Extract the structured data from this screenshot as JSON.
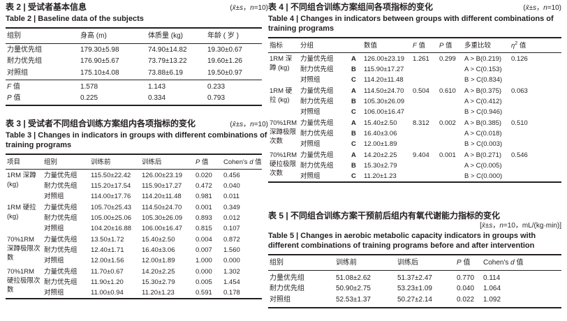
{
  "page": {
    "background": "#ffffff",
    "ink": "#231f20"
  },
  "table2": {
    "title_cn": "表 2 | 受试者基本信息",
    "notation_html": "(<i>x̄</i>±<i>s</i>，<i>n</i>=10)",
    "title_en": "Table 2 | Baseline data of the subjects",
    "headers": [
      "组别",
      "身高 (m)",
      "体质量 (kg)",
      "年龄 ( 岁 )"
    ],
    "rows": [
      [
        "力量优先组",
        "179.30±5.98",
        "74.90±14.82",
        "19.30±0.67"
      ],
      [
        "耐力优先组",
        "176.90±5.67",
        "73.79±13.22",
        "19.60±1.26"
      ],
      [
        "对照组",
        "175.10±4.08",
        "73.88±6.19",
        "19.50±0.97"
      ]
    ],
    "stats": [
      {
        "label_html": "<i>F</i> 值",
        "values": [
          "1.578",
          "1.143",
          "0.233"
        ]
      },
      {
        "label_html": "<i>P</i> 值",
        "values": [
          "0.225",
          "0.334",
          "0.793"
        ]
      }
    ]
  },
  "table3": {
    "title_cn": "表 3 | 受试者不同组合训练方案组内各项指标的变化",
    "notation_html": "(<i>x̄</i>±<i>s</i>，<i>n</i>=10)",
    "title_en": "Table 3 | Changes in indicators in groups with different combinations of training programs",
    "headers": [
      "项目",
      "组别",
      "训练前",
      "训练后"
    ],
    "header_p_html": "<i>P</i> 值",
    "header_d_html": "Cohen's <i>d</i> 值",
    "groups": [
      {
        "item": "1RM 深蹲 (kg)",
        "rows": [
          [
            "力量优先组",
            "115.50±22.42",
            "126.00±23.19",
            "0.020",
            "0.456"
          ],
          [
            "耐力优先组",
            "115.20±17.54",
            "115.90±17.27",
            "0.472",
            "0.040"
          ],
          [
            "对照组",
            "114.00±17.76",
            "114.20±11.48",
            "0.981",
            "0.011"
          ]
        ]
      },
      {
        "item": "1RM 硬拉 (kg)",
        "rows": [
          [
            "力量优先组",
            "105.70±25.43",
            "114.50±24.70",
            "0.001",
            "0.349"
          ],
          [
            "耐力优先组",
            "105.00±25.06",
            "105.30±26.09",
            "0.893",
            "0.012"
          ],
          [
            "对照组",
            "104.20±16.88",
            "106.00±16.47",
            "0.815",
            "0.107"
          ]
        ]
      },
      {
        "item": "70%1RM 深蹲极限次数",
        "rows": [
          [
            "力量优先组",
            "13.50±1.72",
            "15.40±2.50",
            "0.004",
            "0.872"
          ],
          [
            "耐力优先组",
            "12.40±1.71",
            "16.40±3.06",
            "0.007",
            "1.560"
          ],
          [
            "对照组",
            "12.00±1.56",
            "12.00±1.89",
            "1.000",
            "0.000"
          ]
        ]
      },
      {
        "item": "70%1RM 硬拉极限次数",
        "rows": [
          [
            "力量优先组",
            "11.70±0.67",
            "14.20±2.25",
            "0.000",
            "1.302"
          ],
          [
            "耐力优先组",
            "11.90±1.20",
            "15.30±2.79",
            "0.005",
            "1.454"
          ],
          [
            "对照组",
            "11.00±0.94",
            "11.20±1.23",
            "0.591",
            "0.178"
          ]
        ]
      }
    ]
  },
  "table4": {
    "title_cn": "表 4 | 不同组合训练方案组间各项指标的变化",
    "notation_html": "(<i>x̄</i>±<i>s</i>，<i>n</i>=10)",
    "title_en": "Table 4 | Changes in indicators between groups with different combinations of training programs",
    "headers": [
      "指标",
      "分组",
      "数值",
      "多重比较"
    ],
    "header_f_html": "<i>F</i> 值",
    "header_p_html": "<i>P</i> 值",
    "header_eta_html": "<i>η</i><sup>2</sup> 值",
    "groups": [
      {
        "item": "1RM 深蹲 (kg)",
        "rows": [
          {
            "group": "力量优先组",
            "letter": "A",
            "value": "126.00±23.19",
            "f": "1.261",
            "p": "0.299",
            "mc": "A > B(0.219)",
            "eta": "0.126"
          },
          {
            "group": "耐力优先组",
            "letter": "B",
            "value": "115.90±17.27",
            "f": "",
            "p": "",
            "mc": "A > C(0.153)",
            "eta": ""
          },
          {
            "group": "对照组",
            "letter": "C",
            "value": "114.20±11.48",
            "f": "",
            "p": "",
            "mc": "B > C(0.834)",
            "eta": ""
          }
        ]
      },
      {
        "item": "1RM 硬拉 (kg)",
        "rows": [
          {
            "group": "力量优先组",
            "letter": "A",
            "value": "114.50±24.70",
            "f": "0.504",
            "p": "0.610",
            "mc": "A > B(0.375)",
            "eta": "0.063"
          },
          {
            "group": "耐力优先组",
            "letter": "B",
            "value": "105.30±26.09",
            "f": "",
            "p": "",
            "mc": "A > C(0.412)",
            "eta": ""
          },
          {
            "group": "对照组",
            "letter": "C",
            "value": "106.00±16.47",
            "f": "",
            "p": "",
            "mc": "B > C(0.946)",
            "eta": ""
          }
        ]
      },
      {
        "item": "70%1RM 深蹲极限次数",
        "rows": [
          {
            "group": "力量优先组",
            "letter": "A",
            "value": "15.40±2.50",
            "f": "8.312",
            "p": "0.002",
            "mc": "A > B(0.385)",
            "eta": "0.510"
          },
          {
            "group": "耐力优先组",
            "letter": "B",
            "value": "16.40±3.06",
            "f": "",
            "p": "",
            "mc": "A > C(0.018)",
            "eta": ""
          },
          {
            "group": "对照组",
            "letter": "C",
            "value": "12.00±1.89",
            "f": "",
            "p": "",
            "mc": "B > C(0.003)",
            "eta": ""
          }
        ]
      },
      {
        "item": "70%1RM 硬拉极限次数",
        "rows": [
          {
            "group": "力量优先组",
            "letter": "A",
            "value": "14.20±2.25",
            "f": "9.404",
            "p": "0.001",
            "mc": "A > B(0.271)",
            "eta": "0.546"
          },
          {
            "group": "耐力优先组",
            "letter": "B",
            "value": "15.30±2.79",
            "f": "",
            "p": "",
            "mc": "A > C(0.005)",
            "eta": ""
          },
          {
            "group": "对照组",
            "letter": "C",
            "value": "11.20±1.23",
            "f": "",
            "p": "",
            "mc": "B > C(0.000)",
            "eta": ""
          }
        ]
      }
    ]
  },
  "table5": {
    "title_cn": "表 5 | 不同组合训练方案干预前后组内有氧代谢能力指标的变化",
    "notation_html": "[<i>x̄</i>±<i>s</i>，<i>n</i>=10，mL/(kg·min)]",
    "title_en": "Table 5 | Changes in aerobic metabolic capacity indicators in groups with different combinations of training programs before and after intervention",
    "headers": [
      "组别",
      "训练前",
      "训练后"
    ],
    "header_p_html": "<i>P</i> 值",
    "header_d_html": "Cohen's <i>d</i> 值",
    "rows": [
      [
        "力量优先组",
        "51.08±2.62",
        "51.37±2.47",
        "0.770",
        "0.114"
      ],
      [
        "耐力优先组",
        "50.90±2.75",
        "53.23±1.09",
        "0.040",
        "1.064"
      ],
      [
        "对照组",
        "52.53±1.37",
        "50.27±2.14",
        "0.022",
        "1.092"
      ]
    ]
  }
}
